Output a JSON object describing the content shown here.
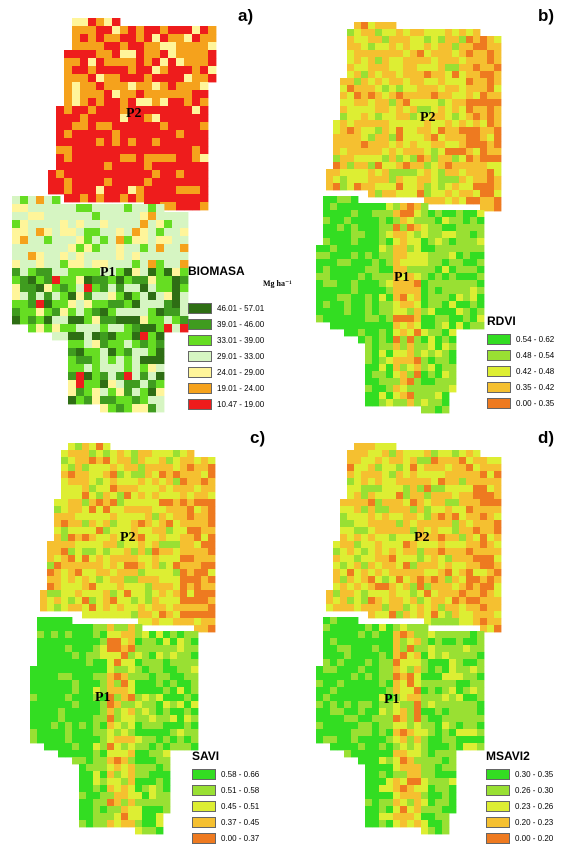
{
  "panels": {
    "a": {
      "label": "a)",
      "plots": [
        "P2",
        "P1"
      ],
      "legend": {
        "title": "BIOMASA",
        "unit": "Mg ha⁻¹",
        "items": [
          {
            "label": "46.01 - 57.01",
            "color": "#2e6e14"
          },
          {
            "label": "39.01 - 46.00",
            "color": "#3f9c1f"
          },
          {
            "label": "33.01 - 39.00",
            "color": "#66dd22"
          },
          {
            "label": "29.01 - 33.00",
            "color": "#d6f5c2"
          },
          {
            "label": "24.01 - 29.00",
            "color": "#fff59a"
          },
          {
            "label": "19.01 - 24.00",
            "color": "#f5a21c"
          },
          {
            "label": "10.47 - 19.00",
            "color": "#ee1c1c"
          }
        ]
      }
    },
    "b": {
      "label": "b)",
      "plots": [
        "P2",
        "P1"
      ],
      "legend": {
        "title": "RDVI",
        "items": [
          {
            "label": "0.54 - 0.62",
            "color": "#33dd22"
          },
          {
            "label": "0.48 - 0.54",
            "color": "#99e033"
          },
          {
            "label": "0.42 - 0.48",
            "color": "#ddee33"
          },
          {
            "label": "0.35 - 0.42",
            "color": "#f5c030"
          },
          {
            "label": "0.00 - 0.35",
            "color": "#ee7a20"
          }
        ]
      }
    },
    "c": {
      "label": "c)",
      "plots": [
        "P2",
        "P1"
      ],
      "legend": {
        "title": "SAVI",
        "items": [
          {
            "label": "0.58 - 0.66",
            "color": "#33dd22"
          },
          {
            "label": "0.51 - 0.58",
            "color": "#99e033"
          },
          {
            "label": "0.45 - 0.51",
            "color": "#ddee33"
          },
          {
            "label": "0.37 - 0.45",
            "color": "#f5c030"
          },
          {
            "label": "0.00 - 0.37",
            "color": "#ee7a20"
          }
        ]
      }
    },
    "d": {
      "label": "d)",
      "plots": [
        "P2",
        "P1"
      ],
      "legend": {
        "title": "MSAVI2",
        "items": [
          {
            "label": "0.30 - 0.35",
            "color": "#33dd22"
          },
          {
            "label": "0.26 - 0.30",
            "color": "#99e033"
          },
          {
            "label": "0.23 - 0.26",
            "color": "#ddee33"
          },
          {
            "label": "0.20 - 0.23",
            "color": "#f5c030"
          },
          {
            "label": "0.00 - 0.20",
            "color": "#ee7a20"
          }
        ]
      }
    }
  }
}
